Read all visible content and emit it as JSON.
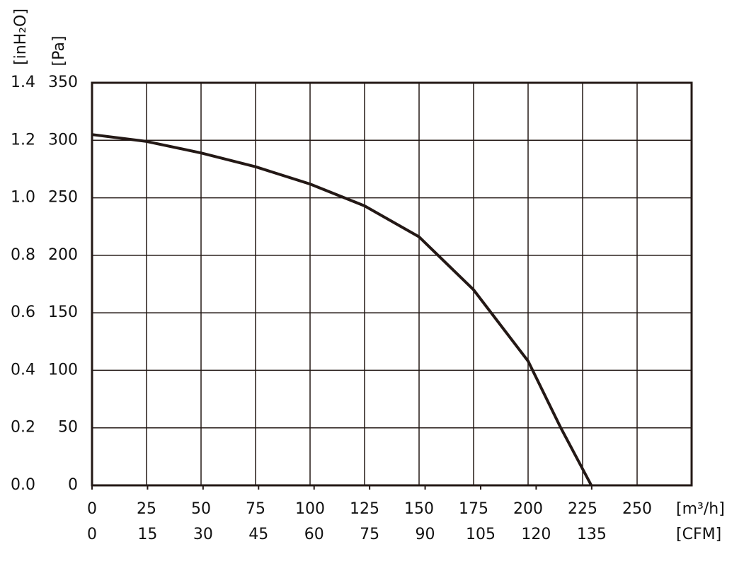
{
  "chart_data": {
    "type": "line",
    "y_label": "[Pa]",
    "y2_label": "[inH₂O]",
    "x_label": "[m³/h]",
    "x2_label": "[CFM]",
    "x": [
      0,
      25,
      50,
      75,
      100,
      125,
      150,
      175,
      200,
      215,
      229
    ],
    "series": [
      {
        "name": "Pa",
        "color": "#231815",
        "values": [
          305,
          299,
          289,
          277,
          262,
          243,
          216,
          170,
          108,
          50,
          0
        ]
      }
    ],
    "xlim": [
      0,
      275
    ],
    "xticks": [
      0,
      25,
      50,
      75,
      100,
      125,
      150,
      175,
      200,
      225,
      250
    ],
    "x2lim": [
      0,
      162
    ],
    "x2ticks": [
      0,
      15,
      30,
      45,
      60,
      75,
      90,
      105,
      120,
      135
    ],
    "ylim": [
      0,
      350
    ],
    "yticks": [
      0,
      50,
      100,
      150,
      200,
      250,
      300,
      350
    ],
    "y2lim": [
      0,
      1.4
    ],
    "y2ticks": [
      {
        "value": 0,
        "label": "0.0"
      },
      0.2,
      0.4,
      0.6,
      0.8,
      {
        "value": 1,
        "label": "1.0"
      },
      1.2,
      1.4
    ],
    "grid": true
  }
}
